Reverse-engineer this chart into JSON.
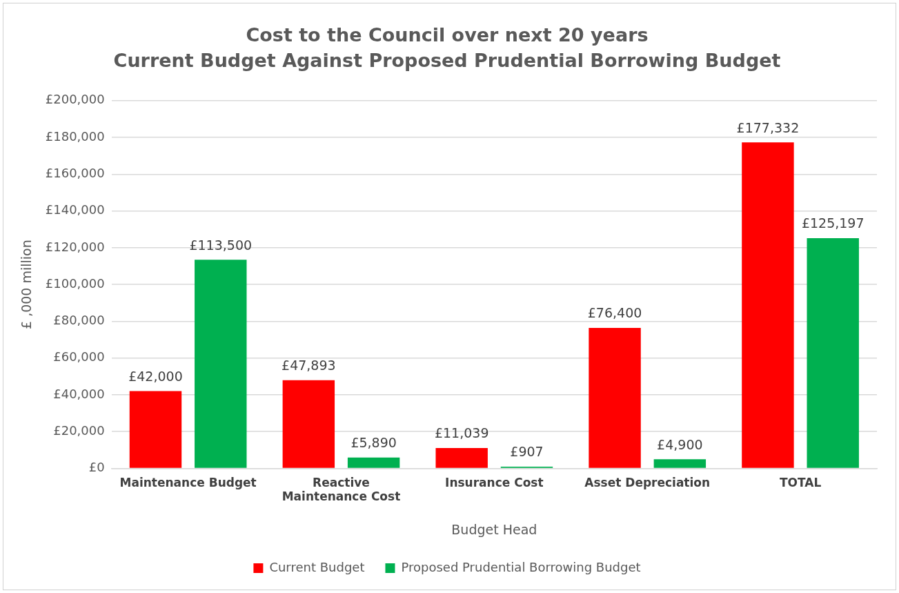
{
  "chart_data": {
    "type": "bar",
    "title": "Cost to the Council over next 20 years",
    "subtitle": "Current Budget Against Proposed Prudential Borrowing Budget",
    "xlabel": "Budget Head",
    "ylabel": "£ ,000 million",
    "categories": [
      "Maintenance Budget",
      "Reactive Maintenance Cost",
      "Insurance Cost",
      "Asset Depreciation",
      "TOTAL"
    ],
    "series": [
      {
        "name": "Current Budget",
        "color": "#ff0000",
        "values": [
          42000,
          47893,
          11039,
          76400,
          177332
        ],
        "value_labels": [
          "£42,000",
          "£47,893",
          "£11,039",
          "£76,400",
          "£177,332"
        ]
      },
      {
        "name": "Proposed Prudential Borrowing Budget",
        "color": "#00b050",
        "values": [
          113500,
          5890,
          907,
          4900,
          125197
        ],
        "value_labels": [
          "£113,500",
          "£5,890",
          "£907",
          "£4,900",
          "£125,197"
        ]
      }
    ],
    "ylim": [
      0,
      200000
    ],
    "yticks": [
      {
        "value": 0,
        "label": "£0"
      },
      {
        "value": 20000,
        "label": "£20,000"
      },
      {
        "value": 40000,
        "label": "£40,000"
      },
      {
        "value": 60000,
        "label": "£60,000"
      },
      {
        "value": 80000,
        "label": "£80,000"
      },
      {
        "value": 100000,
        "label": "£100,000"
      },
      {
        "value": 120000,
        "label": "£120,000"
      },
      {
        "value": 140000,
        "label": "£140,000"
      },
      {
        "value": 160000,
        "label": "£160,000"
      },
      {
        "value": 180000,
        "label": "£180,000"
      },
      {
        "value": 200000,
        "label": "£200,000"
      }
    ],
    "grid": "y",
    "legend": "bottom"
  }
}
